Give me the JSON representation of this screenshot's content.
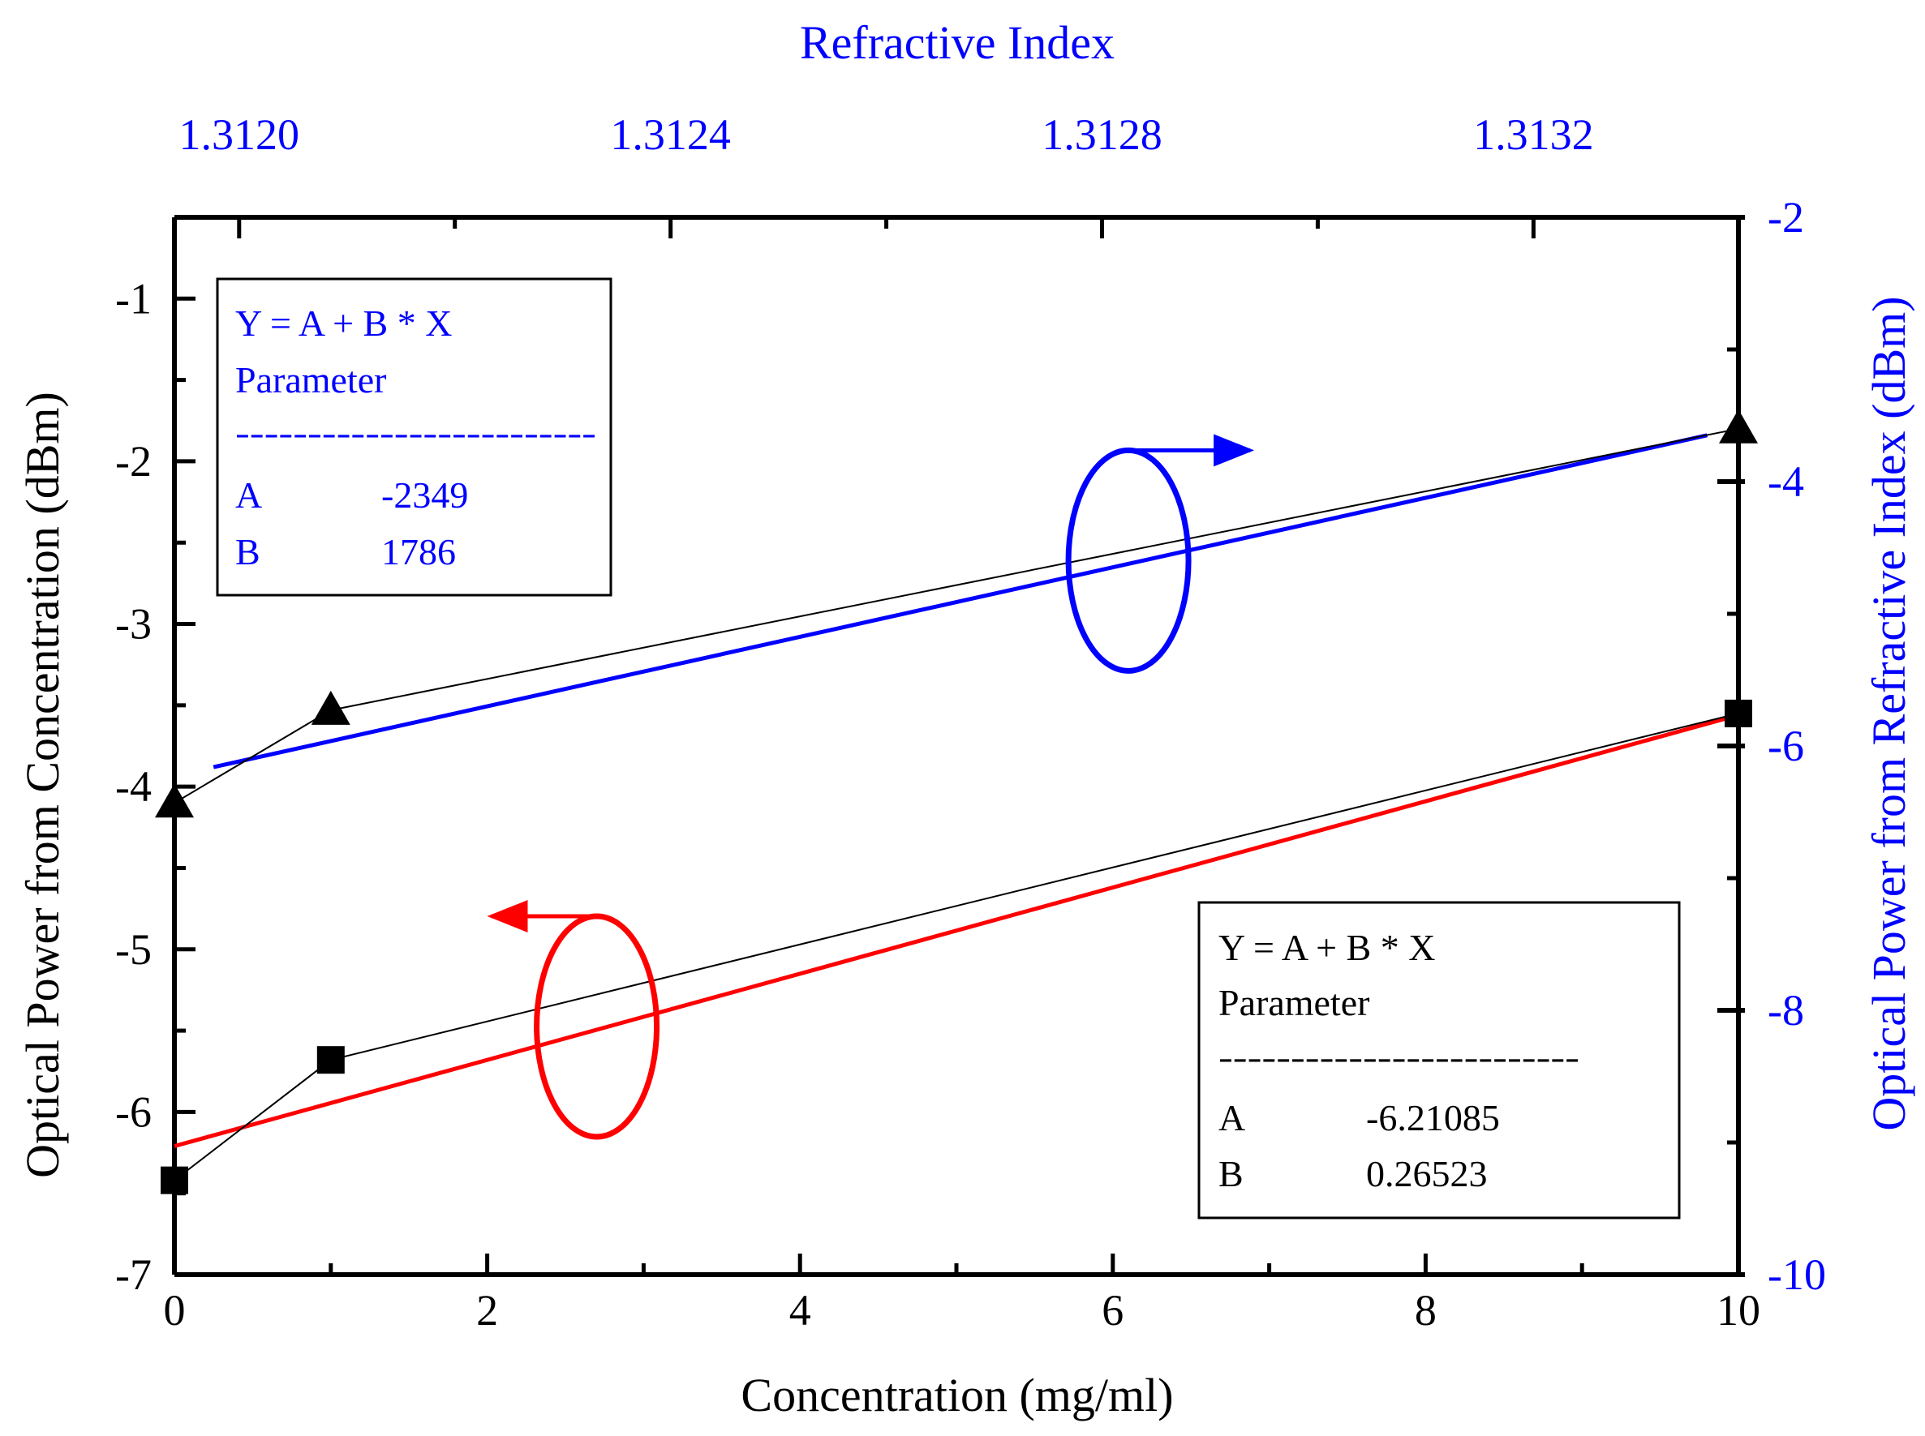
{
  "chart_data": {
    "type": "scatter",
    "xlabel": "Concentration (mg/ml)",
    "ylabel_left": "Optical Power from Concentration (dBm)",
    "ylabel_right": "Optical Power from Refractive Index (dBm)",
    "x2label": "Refractive Index",
    "xlim": [
      0,
      10
    ],
    "ylim_left": [
      -7,
      -0.5
    ],
    "ylim_right": [
      -10,
      -2
    ],
    "x2lim": [
      1.31194,
      1.31339
    ],
    "x_ticks": [
      0,
      2,
      4,
      6,
      8,
      10
    ],
    "y_left_ticks": [
      -7,
      -6,
      -5,
      -4,
      -3,
      -2,
      -1
    ],
    "y_right_ticks": [
      -10,
      -8,
      -6,
      -4,
      -2
    ],
    "x2_ticks": [
      "1.3120",
      "1.3124",
      "1.3128",
      "1.3132"
    ],
    "colors": {
      "blue": "#0000ff",
      "red": "#ff0000",
      "black": "#000000"
    },
    "series": [
      {
        "marker": "square",
        "axis": "left",
        "x": [
          0,
          1,
          10
        ],
        "y": [
          -6.42,
          -5.68,
          -3.55
        ],
        "fit": {
          "x": [
            0,
            10
          ],
          "y": [
            -6.21,
            -3.56
          ],
          "color": "red"
        }
      },
      {
        "marker": "triangle",
        "axis": "left",
        "x": [
          0,
          1,
          10
        ],
        "y": [
          -4.1,
          -3.53,
          -1.8
        ],
        "fit": {
          "x": [
            0.25,
            9.8
          ],
          "y": [
            -3.88,
            -1.84
          ],
          "color": "blue"
        }
      }
    ],
    "fit_boxes": [
      {
        "color": "blue",
        "equation": "Y = A + B * X",
        "parameter_label": "Parameter",
        "separator": "-------------------------",
        "rows": [
          {
            "name": "A",
            "value": "-2349"
          },
          {
            "name": "B",
            "value": "1786"
          }
        ]
      },
      {
        "color": "black",
        "equation": "Y = A + B * X",
        "parameter_label": "Parameter",
        "separator": "-------------------------",
        "rows": [
          {
            "name": "A",
            "value": "-6.21085"
          },
          {
            "name": "B",
            "value": "0.26523"
          }
        ]
      }
    ],
    "axis_indicators": [
      {
        "color": "blue",
        "points_to": "right",
        "series_index": 1
      },
      {
        "color": "red",
        "points_to": "left",
        "series_index": 0
      }
    ]
  }
}
